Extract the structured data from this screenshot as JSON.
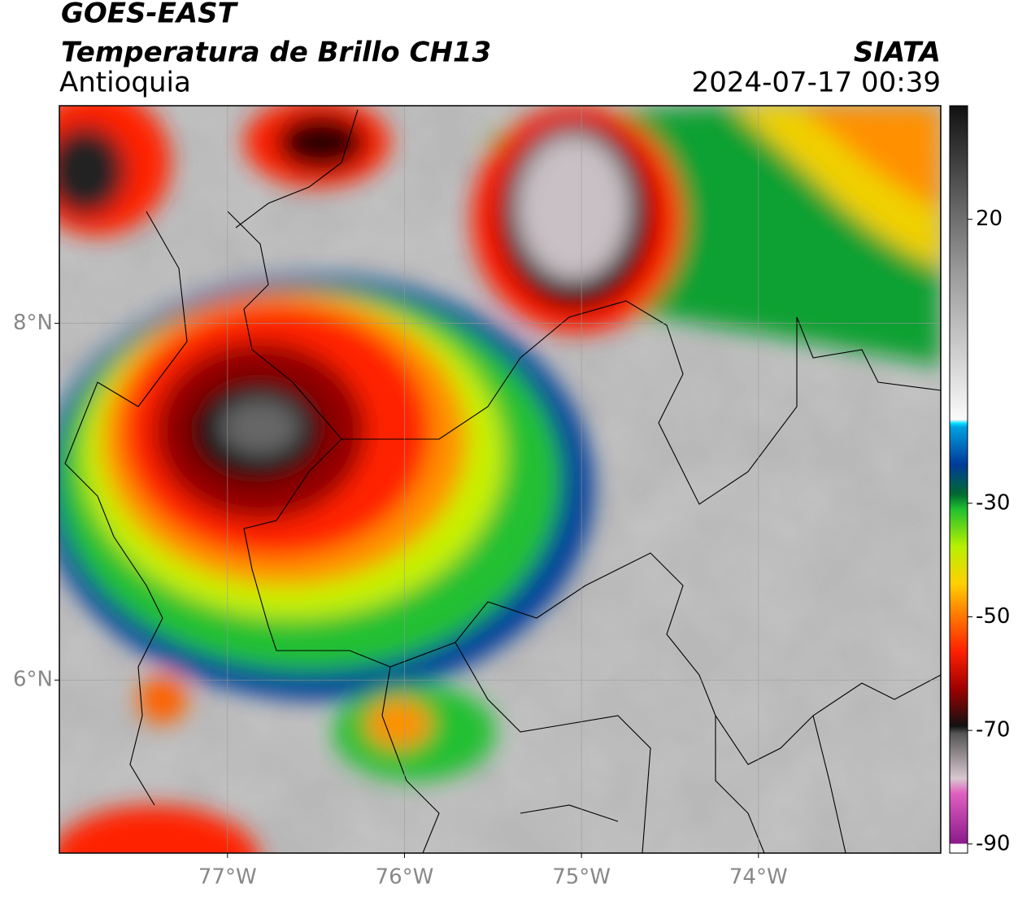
{
  "header": {
    "title": "GOES-EAST",
    "subtitle": "Temperatura de Brillo CH13",
    "region": "Antioquia",
    "source": "SIATA",
    "timestamp": "2024-07-17 00:39"
  },
  "map": {
    "xlim": [
      -77.95,
      -72.97
    ],
    "ylim": [
      5.03,
      9.22
    ],
    "xticks": [
      {
        "value": -77,
        "label": "77°W"
      },
      {
        "value": -76,
        "label": "76°W"
      },
      {
        "value": -75,
        "label": "75°W"
      },
      {
        "value": -74,
        "label": "74°W"
      }
    ],
    "yticks": [
      {
        "value": 8,
        "label": "8°N"
      },
      {
        "value": 6,
        "label": "6°N"
      }
    ],
    "grid": true
  },
  "colorbar": {
    "lim": [
      -91.6,
      40
    ],
    "ticks": [
      20,
      -30,
      -50,
      -70,
      -90
    ]
  }
}
